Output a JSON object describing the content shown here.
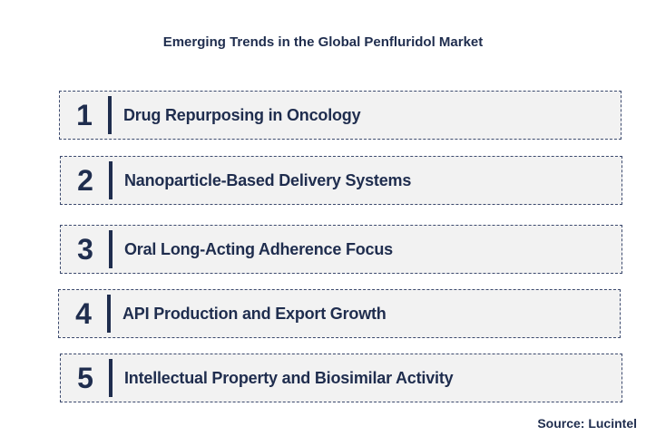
{
  "title": "Emerging Trends in the Global Penfluridol Market",
  "trends": [
    {
      "number": "1",
      "label": "Drug Repurposing in Oncology"
    },
    {
      "number": "2",
      "label": "Nanoparticle-Based Delivery Systems"
    },
    {
      "number": "3",
      "label": "Oral Long-Acting Adherence Focus"
    },
    {
      "number": "4",
      "label": "API Production and Export Growth"
    },
    {
      "number": "5",
      "label": "Intellectual Property and Biosimilar Activity"
    }
  ],
  "source": "Source: Lucintel",
  "colors": {
    "text": "#1f2d4e",
    "box_fill": "#f2f2f2",
    "box_border": "#3c4a6e"
  }
}
